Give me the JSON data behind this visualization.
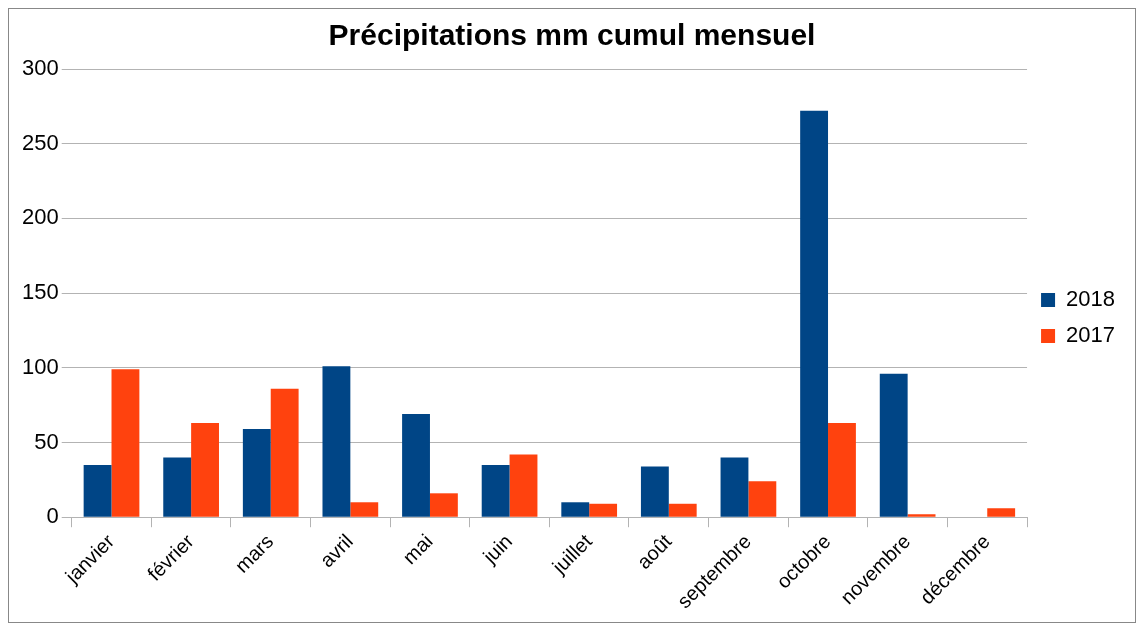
{
  "chart_data": {
    "type": "bar",
    "title": "Précipitations mm cumul mensuel",
    "categories": [
      "janvier",
      "février",
      "mars",
      "avril",
      "mai",
      "juin",
      "juillet",
      "août",
      "septembre",
      "octobre",
      "novembre",
      "décembre"
    ],
    "series": [
      {
        "name": "2018",
        "color": "#004586",
        "values": [
          35,
          40,
          59,
          101,
          69,
          35,
          10,
          34,
          40,
          272,
          96,
          null
        ]
      },
      {
        "name": "2017",
        "color": "#ff420e",
        "values": [
          99,
          63,
          86,
          10,
          16,
          42,
          9,
          9,
          24,
          63,
          2,
          6
        ]
      }
    ],
    "ylim": [
      0,
      300
    ],
    "yticks": [
      0,
      50,
      100,
      150,
      200,
      250,
      300
    ],
    "grid": "y",
    "legend": "right"
  }
}
